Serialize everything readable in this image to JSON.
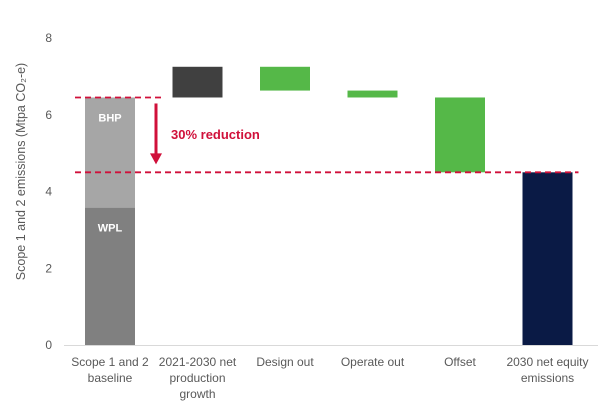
{
  "chart_data": {
    "type": "bar",
    "subtype": "waterfall",
    "ylabel": "Scope 1 and 2 emissions (Mtpa CO₂-e)",
    "ylim": [
      0,
      8
    ],
    "yticks": [
      "0",
      "2",
      "4",
      "6",
      "8"
    ],
    "grid": false,
    "categories": [
      [
        "Scope 1 and 2",
        "baseline"
      ],
      [
        "2021-2030 net",
        "production",
        "growth"
      ],
      [
        "Design out"
      ],
      [
        "Operate out"
      ],
      [
        "Offset"
      ],
      [
        "2030 net equity",
        "emissions"
      ]
    ],
    "bars": [
      {
        "segments": [
          {
            "from": 0,
            "to": 3.58,
            "label": "WPL",
            "color": "#808080"
          },
          {
            "from": 3.58,
            "to": 6.45,
            "label": "BHP",
            "color": "#a6a6a6"
          }
        ]
      },
      {
        "segments": [
          {
            "from": 6.45,
            "to": 7.25,
            "label": "",
            "color": "#404040"
          }
        ]
      },
      {
        "segments": [
          {
            "from": 6.63,
            "to": 7.25,
            "label": "",
            "color": "#55b848"
          }
        ]
      },
      {
        "segments": [
          {
            "from": 6.45,
            "to": 6.63,
            "label": "",
            "color": "#55b848"
          }
        ]
      },
      {
        "segments": [
          {
            "from": 4.5,
            "to": 6.45,
            "label": "",
            "color": "#55b848"
          }
        ]
      },
      {
        "segments": [
          {
            "from": 0,
            "to": 4.5,
            "label": "",
            "color": "#0a1a45"
          }
        ]
      }
    ],
    "reference_lines": [
      {
        "value": 6.45,
        "from_bar": 0,
        "to_bar": 0,
        "color": "#d0103a"
      },
      {
        "value": 4.5,
        "from_bar": 0,
        "to_bar": 5,
        "color": "#d0103a"
      }
    ],
    "annotation": {
      "text": "30% reduction",
      "color": "#d0103a"
    },
    "colors": {
      "axis": "#d9d9d9",
      "text": "#595959",
      "highlight": "#d0103a"
    }
  }
}
